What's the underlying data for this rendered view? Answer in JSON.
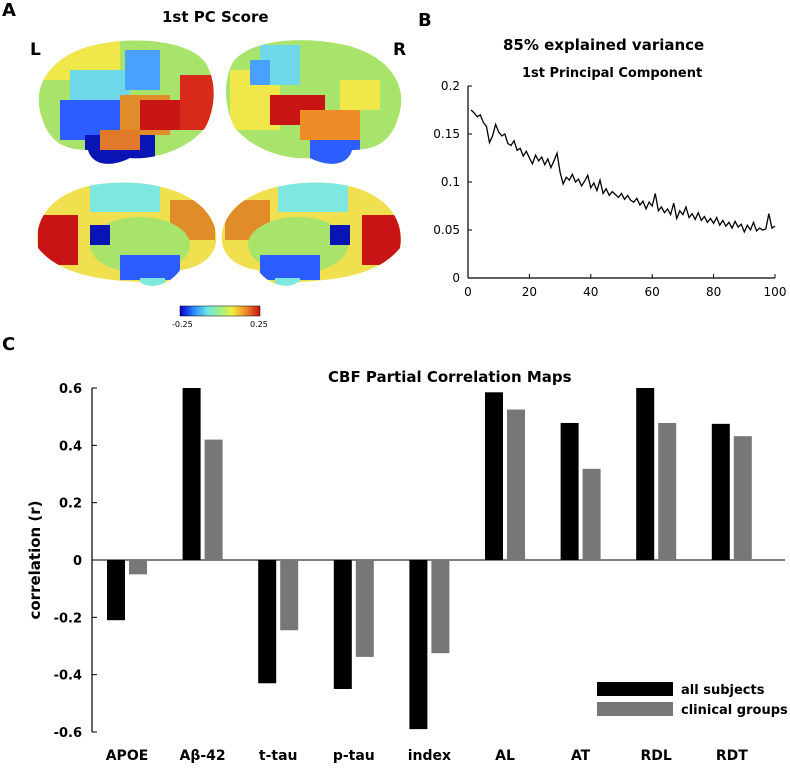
{
  "panel_a": {
    "letter": "A",
    "title": "1st PC Score",
    "left_label": "L",
    "right_label": "R",
    "colorbar_min": "-0.25",
    "colorbar_max": "0.25",
    "colormap": [
      "#0000c8",
      "#2d8cff",
      "#6fe8e0",
      "#9ef08c",
      "#f0f040",
      "#f08c28",
      "#c81414"
    ]
  },
  "panel_b": {
    "letter": "B",
    "title": "85% explained variance",
    "subtitle": "1st Principal Component"
  },
  "panel_c": {
    "letter": "C",
    "title": "CBF Partial Correlation Maps"
  },
  "chart_data": [
    {
      "type": "line",
      "title": "85% explained variance",
      "subtitle": "1st Principal Component",
      "xlabel": "",
      "ylabel": "",
      "xlim": [
        0,
        100
      ],
      "ylim": [
        0,
        0.2
      ],
      "xticks": [
        "0",
        "20",
        "40",
        "60",
        "80",
        "100"
      ],
      "yticks": [
        "0",
        "0.05",
        "0.1",
        "0.15",
        "0.2"
      ],
      "series": [
        {
          "color": "#000000",
          "x": [
            1,
            2,
            3,
            4,
            5,
            6,
            7,
            8,
            9,
            10,
            11,
            12,
            13,
            14,
            15,
            16,
            17,
            18,
            19,
            20,
            21,
            22,
            23,
            24,
            25,
            26,
            27,
            28,
            29,
            30,
            31,
            32,
            33,
            34,
            35,
            36,
            37,
            38,
            39,
            40,
            41,
            42,
            43,
            44,
            45,
            46,
            47,
            48,
            49,
            50,
            51,
            52,
            53,
            54,
            55,
            56,
            57,
            58,
            59,
            60,
            61,
            62,
            63,
            64,
            65,
            66,
            67,
            68,
            69,
            70,
            71,
            72,
            73,
            74,
            75,
            76,
            77,
            78,
            79,
            80,
            81,
            82,
            83,
            84,
            85,
            86,
            87,
            88,
            89,
            90,
            91,
            92,
            93,
            94,
            95,
            96,
            97,
            98,
            99,
            100
          ],
          "y": [
            0.175,
            0.172,
            0.168,
            0.17,
            0.162,
            0.158,
            0.141,
            0.148,
            0.16,
            0.152,
            0.148,
            0.15,
            0.14,
            0.138,
            0.143,
            0.133,
            0.135,
            0.127,
            0.132,
            0.125,
            0.119,
            0.128,
            0.122,
            0.126,
            0.118,
            0.124,
            0.115,
            0.122,
            0.13,
            0.11,
            0.098,
            0.105,
            0.102,
            0.108,
            0.1,
            0.103,
            0.096,
            0.101,
            0.107,
            0.094,
            0.099,
            0.091,
            0.102,
            0.088,
            0.093,
            0.086,
            0.09,
            0.087,
            0.084,
            0.088,
            0.082,
            0.086,
            0.081,
            0.079,
            0.083,
            0.076,
            0.08,
            0.072,
            0.079,
            0.075,
            0.088,
            0.07,
            0.074,
            0.068,
            0.072,
            0.066,
            0.078,
            0.062,
            0.07,
            0.066,
            0.074,
            0.063,
            0.067,
            0.061,
            0.068,
            0.06,
            0.064,
            0.058,
            0.062,
            0.057,
            0.063,
            0.055,
            0.06,
            0.054,
            0.058,
            0.052,
            0.059,
            0.053,
            0.056,
            0.048,
            0.055,
            0.05,
            0.058,
            0.049,
            0.052,
            0.05,
            0.051,
            0.067,
            0.052,
            0.054
          ]
        }
      ]
    },
    {
      "type": "bar",
      "title": "CBF Partial Correlation Maps",
      "xlabel": "",
      "ylabel": "correlation (r)",
      "ylim": [
        -0.6,
        0.6
      ],
      "yticks": [
        "-0.6",
        "-0.4",
        "-0.2",
        "0",
        "0.2",
        "0.4",
        "0.6"
      ],
      "categories": [
        "APOE",
        "Aβ-42",
        "t-tau",
        "p-tau",
        "index",
        "AL",
        "AT",
        "RDL",
        "RDT"
      ],
      "legend_position": "bottom-right",
      "series": [
        {
          "name": "all subjects",
          "color": "#000000",
          "values": [
            -0.21,
            0.6,
            -0.43,
            -0.45,
            -0.59,
            0.585,
            0.478,
            0.6,
            0.475
          ]
        },
        {
          "name": "clinical groups",
          "color": "#777777",
          "values": [
            -0.05,
            0.42,
            -0.245,
            -0.338,
            -0.325,
            0.525,
            0.318,
            0.478,
            0.432
          ]
        }
      ]
    }
  ]
}
